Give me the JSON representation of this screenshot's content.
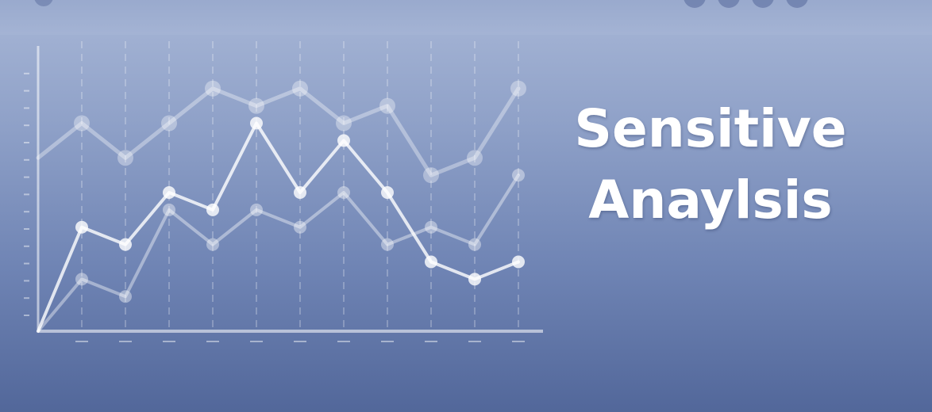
{
  "title": {
    "line1": "Sensitive",
    "line2": "Anaylsis"
  },
  "colors": {
    "bg_top": "#a7b6d6",
    "bg_bottom": "#52679a",
    "mark": "#ffffff"
  },
  "chart_data": {
    "type": "line",
    "x": [
      0,
      1,
      2,
      3,
      4,
      5,
      6,
      7,
      8,
      9,
      10,
      11
    ],
    "series": [
      {
        "values": [
          10,
          12,
          10,
          12,
          14,
          13,
          14,
          12,
          13,
          9,
          10,
          14
        ]
      },
      {
        "values": [
          0,
          6,
          5,
          8,
          7,
          12,
          8,
          11,
          8,
          4,
          3,
          4
        ]
      },
      {
        "values": [
          0,
          3,
          2,
          7,
          5,
          7,
          6,
          8,
          5,
          6,
          5,
          9
        ]
      }
    ],
    "ylim": [
      0,
      16
    ],
    "grid": true
  }
}
